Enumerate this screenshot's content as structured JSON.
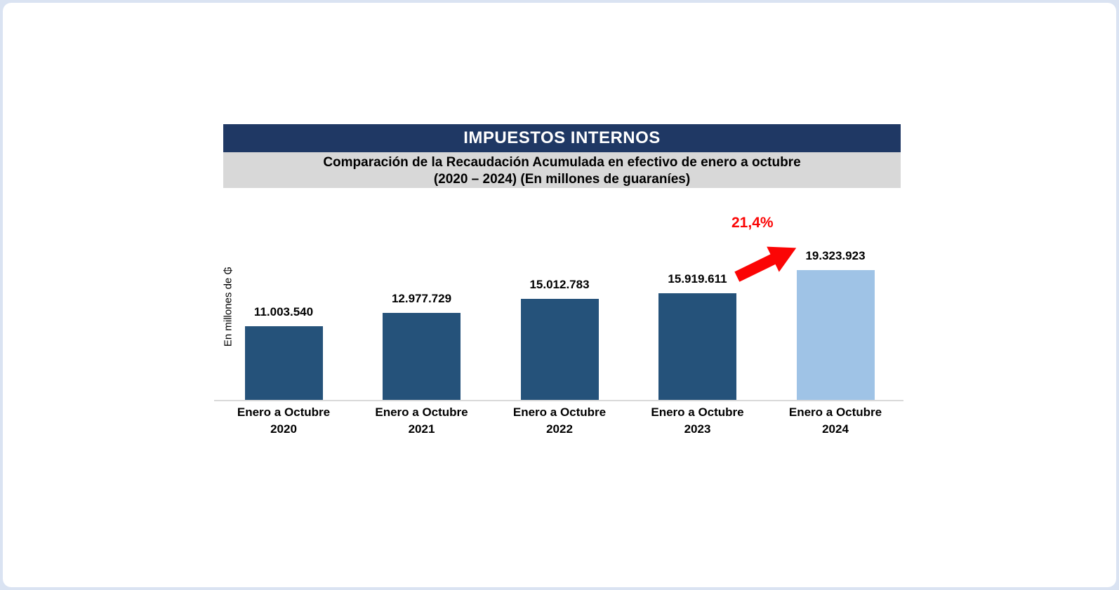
{
  "page": {
    "border_color": "#dae3f2",
    "background": "#ffffff"
  },
  "header": {
    "title": "IMPUESTOS INTERNOS",
    "title_bg": "#1f3864",
    "title_color": "#ffffff",
    "subtitle_line1": "Comparación de la Recaudación Acumulada en efectivo de enero a octubre",
    "subtitle_line2": "(2020 – 2024) (En millones de guaraníes)",
    "subtitle_bg": "#d8d8d8",
    "subtitle_color": "#000000"
  },
  "chart_data": {
    "type": "bar",
    "title": "IMPUESTOS INTERNOS",
    "subtitle": "Comparación de la Recaudación Acumulada en efectivo de enero a octubre (2020 – 2024) (En millones de guaraníes)",
    "ylabel": "En millones de ₲",
    "xlabel": "",
    "categories": [
      {
        "period": "Enero a Octubre",
        "year": "2020"
      },
      {
        "period": "Enero a Octubre",
        "year": "2021"
      },
      {
        "period": "Enero a Octubre",
        "year": "2022"
      },
      {
        "period": "Enero a Octubre",
        "year": "2023"
      },
      {
        "period": "Enero a Octubre",
        "year": "2024"
      }
    ],
    "values": [
      11003540,
      12977729,
      15012783,
      15919611,
      19323923
    ],
    "value_labels": [
      "11.003.540",
      "12.977.729",
      "15.012.783",
      "15.919.611",
      "19.323.923"
    ],
    "bar_colors": [
      "#25527a",
      "#25527a",
      "#25527a",
      "#25527a",
      "#9fc3e6"
    ],
    "ylim": [
      0,
      19323923
    ],
    "grid": false,
    "legend": false,
    "axis_line_color": "#d9d9d9",
    "annotation": {
      "label": "21,4%",
      "color": "#fb0505",
      "shape": "block-arrow-up-right",
      "applies_to": "2024"
    }
  }
}
